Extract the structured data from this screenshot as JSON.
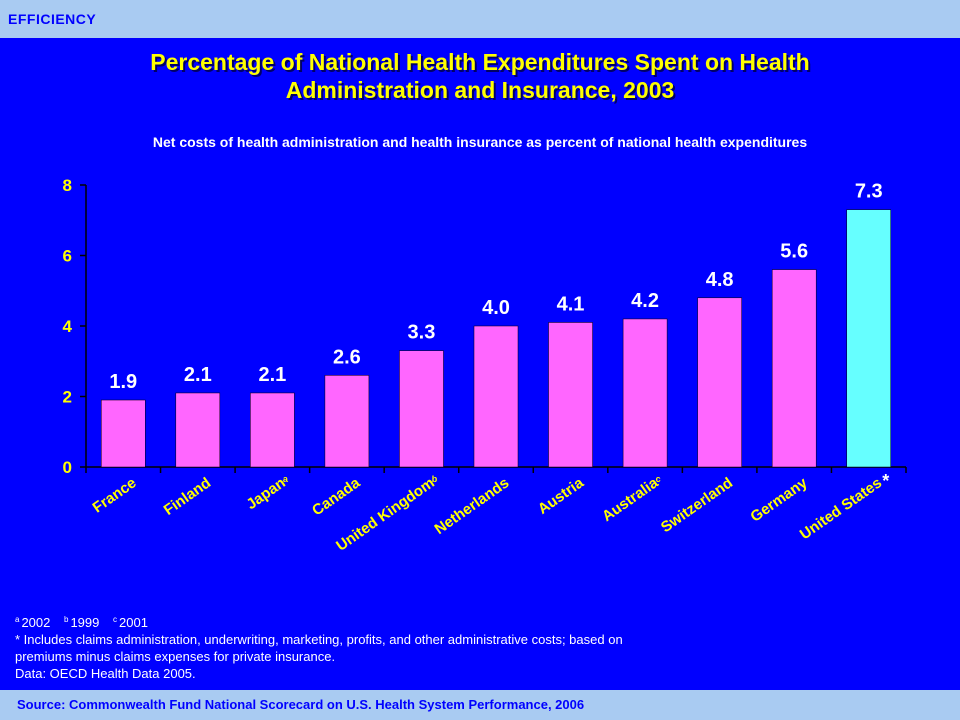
{
  "header": {
    "section_label": "EFFICIENCY"
  },
  "title_lines": [
    "Percentage of National Health Expenditures Spent on Health",
    "Administration and Insurance, 2003"
  ],
  "subtitle": "Net costs of health administration and health insurance as percent of national health expenditures",
  "chart_data": {
    "type": "bar",
    "title": "Percentage of National Health Expenditures Spent on Health Administration and Insurance, 2003",
    "subtitle": "Net costs of health administration and health insurance as percent of national health expenditures",
    "categories": [
      "France",
      "Finland",
      "Japan",
      "Canada",
      "United Kingdom",
      "Netherlands",
      "Austria",
      "Australia",
      "Switzerland",
      "Germany",
      "United States"
    ],
    "category_marks": [
      "",
      "",
      "a",
      "",
      "b",
      "",
      "",
      "c",
      "",
      "",
      "*"
    ],
    "values": [
      1.9,
      2.1,
      2.1,
      2.6,
      3.3,
      4.0,
      4.1,
      4.2,
      4.8,
      5.6,
      7.3
    ],
    "value_labels": [
      "1.9",
      "2.1",
      "2.1",
      "2.6",
      "3.3",
      "4.0",
      "4.1",
      "4.2",
      "4.8",
      "5.6",
      "7.3"
    ],
    "ylim": [
      0,
      8
    ],
    "yticks": [
      "0",
      "2",
      "4",
      "6",
      "8"
    ],
    "xlabel": "",
    "ylabel": "",
    "grid": false,
    "colors": {
      "default": "#ff66ff",
      "highlight": "#66ffff",
      "axis": "#000000",
      "tick_text": "#ffff00",
      "label_text": "#ffffff"
    },
    "highlight_index": 10
  },
  "footnotes": {
    "a_mark": "a",
    "a_text": "2002",
    "b_mark": "b",
    "b_text": "1999",
    "c_mark": "c",
    "c_text": "2001",
    "star_note_line1": "* Includes claims administration, underwriting, marketing, profits, and other administrative costs; based on",
    "star_note_line2": "premiums minus claims expenses for private insurance.",
    "data_source": "Data: OECD Health Data 2005."
  },
  "footer": {
    "source": "Source: Commonwealth Fund National Scorecard on U.S. Health System Performance, 2006"
  }
}
